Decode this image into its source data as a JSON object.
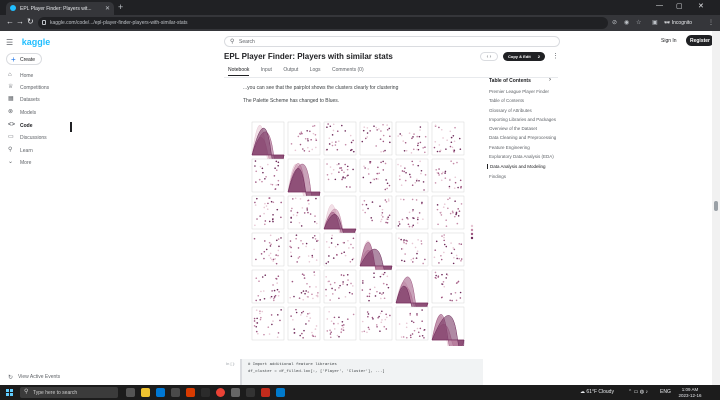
{
  "browser": {
    "tab_title": "EPL Player Finder: Players wit...",
    "url": "kaggle.com/code/.../epl-player-finder-players-with-similar-stats",
    "profile_label": "Incognito"
  },
  "kaggle": {
    "logo": "kaggle",
    "create_label": "Create",
    "nav": [
      {
        "label": "Home",
        "icon": "home-icon"
      },
      {
        "label": "Competitions",
        "icon": "trophy-icon"
      },
      {
        "label": "Datasets",
        "icon": "table-icon"
      },
      {
        "label": "Models",
        "icon": "models-icon"
      },
      {
        "label": "Code",
        "icon": "code-icon"
      },
      {
        "label": "Discussions",
        "icon": "discussion-icon"
      },
      {
        "label": "Learn",
        "icon": "learn-icon"
      },
      {
        "label": "More",
        "icon": "chevron-down-icon"
      }
    ],
    "view_events": "View Active Events",
    "search_placeholder": "Search",
    "sign_in": "Sign In",
    "register": "Register"
  },
  "notebook": {
    "title": "EPL Player Finder: Players with similar stats",
    "copy_edit": "Copy & Edit",
    "copy_count": "2",
    "tabs": [
      "Notebook",
      "Input",
      "Output",
      "Logs",
      "Comments (0)"
    ],
    "active_tab": 0,
    "text_line_1": "...you can see that the pairplot shows the clusters clearly for clustering",
    "text_line_2": "The Palette Scheme has changed to Blues.",
    "code_line_1": "# Import additional feature libraries",
    "code_line_2": "df_cluster = df_filled.loc[:, ['Player', 'Cluster'], ...]",
    "in_label": "In [ ]:"
  },
  "toc": {
    "title": "Table of Contents",
    "items": [
      "Premier League Player Finder",
      "Table of Contents",
      "Glossary of Attributes",
      "Importing Libraries and Packages",
      "Overview of the Dataset",
      "Data Cleaning and Preprocessing",
      "Feature Engineering",
      "Exploratory Data Analysis (EDA)",
      "Data Analysis and Modeling",
      "Findings"
    ],
    "active_index": 8
  },
  "pairplot": {
    "rows": 6,
    "cols": 6,
    "colors": [
      "#e7c6d3",
      "#c58ba8",
      "#9d5680",
      "#6e2a5a"
    ]
  },
  "taskbar": {
    "search_placeholder": "Type here to search",
    "weather": "61°F Cloudy",
    "lang": "ENG",
    "time": "1:09 AM",
    "date": "2023-12-16"
  }
}
